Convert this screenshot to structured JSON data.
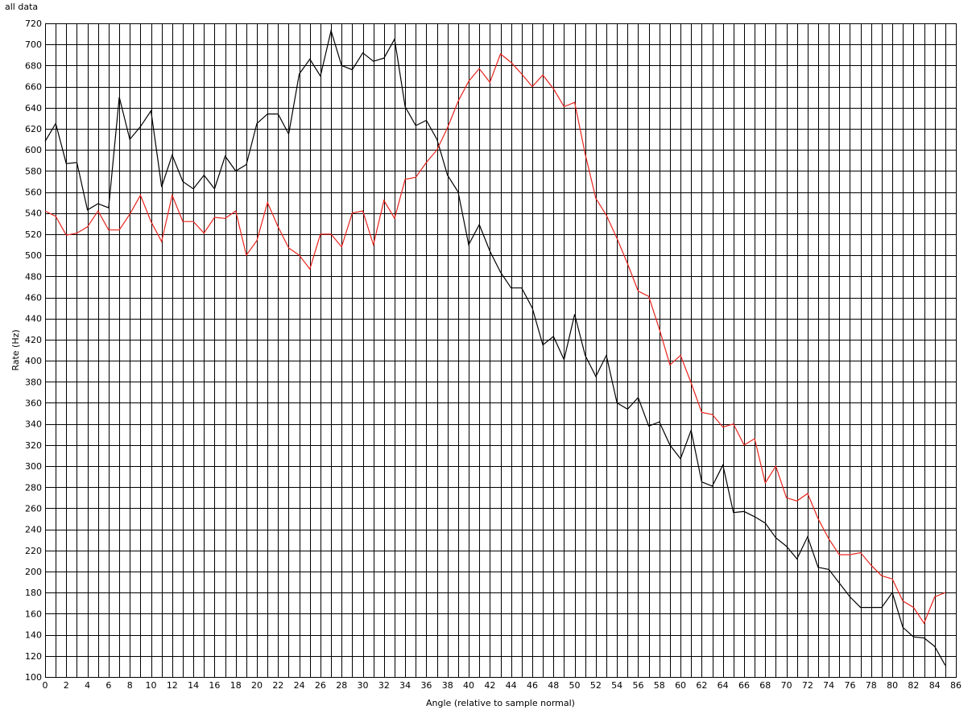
{
  "chart_data": {
    "type": "line",
    "title": "all data",
    "xlabel": "Angle (relative to sample normal)",
    "ylabel": "Rate (Hz)",
    "xlim": [
      0,
      86
    ],
    "ylim": [
      100,
      720
    ],
    "x_ticks": [
      0,
      2,
      4,
      6,
      8,
      10,
      12,
      14,
      16,
      18,
      20,
      22,
      24,
      26,
      28,
      30,
      32,
      34,
      36,
      38,
      40,
      42,
      44,
      46,
      48,
      50,
      52,
      54,
      56,
      58,
      60,
      62,
      64,
      66,
      68,
      70,
      72,
      74,
      76,
      78,
      80,
      82,
      84,
      86
    ],
    "y_ticks": [
      100,
      120,
      140,
      160,
      180,
      200,
      220,
      240,
      260,
      280,
      300,
      320,
      340,
      360,
      380,
      400,
      420,
      440,
      460,
      480,
      500,
      520,
      540,
      560,
      580,
      600,
      620,
      640,
      660,
      680,
      700,
      720
    ],
    "grid": true,
    "series": [
      {
        "color": "#000000",
        "x": [
          0,
          1,
          2,
          3,
          4,
          5,
          6,
          7,
          8,
          9,
          10,
          11,
          12,
          13,
          14,
          15,
          16,
          17,
          18,
          19,
          20,
          21,
          22,
          23,
          24,
          25,
          26,
          27,
          28,
          29,
          30,
          31,
          32,
          33,
          34,
          35,
          36,
          37,
          38,
          39,
          40,
          41,
          42,
          43,
          44,
          45,
          46,
          47,
          48,
          49,
          50,
          51,
          52,
          53,
          54,
          55,
          56,
          57,
          58,
          59,
          60,
          61,
          62,
          63,
          64,
          65,
          66,
          67,
          68,
          69,
          70,
          71,
          72,
          73,
          74,
          75,
          76,
          77,
          78,
          79,
          80,
          81,
          82,
          83,
          84,
          85
        ],
        "y": [
          608,
          625,
          587,
          588,
          543,
          549,
          545,
          650,
          610,
          622,
          637,
          565,
          595,
          570,
          563,
          576,
          563,
          594,
          580,
          586,
          625,
          634,
          634,
          615,
          672,
          686,
          670,
          713,
          680,
          676,
          692,
          684,
          687,
          705,
          641,
          623,
          628,
          610,
          576,
          560,
          510,
          529,
          504,
          484,
          469,
          469,
          450,
          415,
          423,
          401,
          444,
          405,
          385,
          405,
          360,
          354,
          365,
          338,
          342,
          320,
          307,
          334,
          285,
          281,
          301,
          256,
          257,
          252,
          246,
          232,
          224,
          212,
          233,
          204,
          202,
          189,
          176,
          166,
          166,
          166,
          180,
          147,
          138,
          137,
          129,
          111
        ]
      },
      {
        "color": "#e8231c",
        "x": [
          0,
          1,
          2,
          3,
          4,
          5,
          6,
          7,
          8,
          9,
          10,
          11,
          12,
          13,
          14,
          15,
          16,
          17,
          18,
          19,
          20,
          21,
          22,
          23,
          24,
          25,
          26,
          27,
          28,
          29,
          30,
          31,
          32,
          33,
          34,
          35,
          36,
          37,
          38,
          39,
          40,
          41,
          42,
          43,
          44,
          45,
          46,
          47,
          48,
          49,
          50,
          51,
          52,
          53,
          54,
          55,
          56,
          57,
          58,
          59,
          60,
          61,
          62,
          63,
          64,
          65,
          66,
          67,
          68,
          69,
          70,
          71,
          72,
          73,
          74,
          75,
          76,
          77,
          78,
          79,
          80,
          81,
          82,
          83,
          84,
          85
        ],
        "y": [
          542,
          537,
          519,
          521,
          527,
          542,
          524,
          524,
          539,
          557,
          532,
          513,
          557,
          532,
          532,
          521,
          536,
          535,
          542,
          500,
          514,
          550,
          527,
          507,
          500,
          487,
          520,
          520,
          508,
          540,
          542,
          510,
          552,
          535,
          572,
          574,
          588,
          600,
          621,
          646,
          665,
          677,
          664,
          691,
          683,
          672,
          660,
          671,
          658,
          641,
          645,
          596,
          554,
          538,
          516,
          492,
          466,
          461,
          430,
          396,
          405,
          379,
          351,
          349,
          337,
          340,
          320,
          326,
          284,
          300,
          270,
          267,
          274,
          250,
          231,
          216,
          216,
          218,
          206,
          196,
          193,
          172,
          166,
          151,
          176,
          180
        ]
      }
    ]
  }
}
